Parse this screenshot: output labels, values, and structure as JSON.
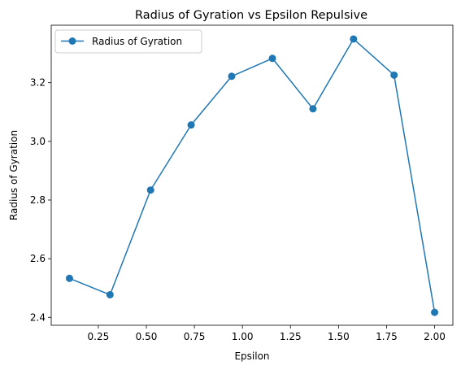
{
  "chart_data": {
    "type": "line",
    "title": "Radius of Gyration vs Epsilon Repulsive",
    "xlabel": "Epsilon",
    "ylabel": "Radius of Gyration",
    "xlim": [
      0.005,
      2.095
    ],
    "ylim": [
      2.373,
      3.396
    ],
    "xticks": [
      "0.25",
      "0.50",
      "0.75",
      "1.00",
      "1.25",
      "1.50",
      "1.75",
      "2.00"
    ],
    "xtick_values": [
      0.25,
      0.5,
      0.75,
      1.0,
      1.25,
      1.5,
      1.75,
      2.0
    ],
    "yticks": [
      "2.4",
      "2.6",
      "2.8",
      "3.0",
      "3.2"
    ],
    "ytick_values": [
      2.4,
      2.6,
      2.8,
      3.0,
      3.2
    ],
    "grid": false,
    "legend_position": "upper-left",
    "series": [
      {
        "name": "Radius of Gyration",
        "color": "#1f77b4",
        "marker": "circle",
        "x": [
          0.1,
          0.311,
          0.522,
          0.733,
          0.944,
          1.156,
          1.367,
          1.578,
          1.789,
          2.0
        ],
        "y": [
          2.533,
          2.477,
          2.834,
          3.056,
          3.222,
          3.283,
          3.111,
          3.349,
          3.226,
          2.417
        ]
      }
    ]
  }
}
